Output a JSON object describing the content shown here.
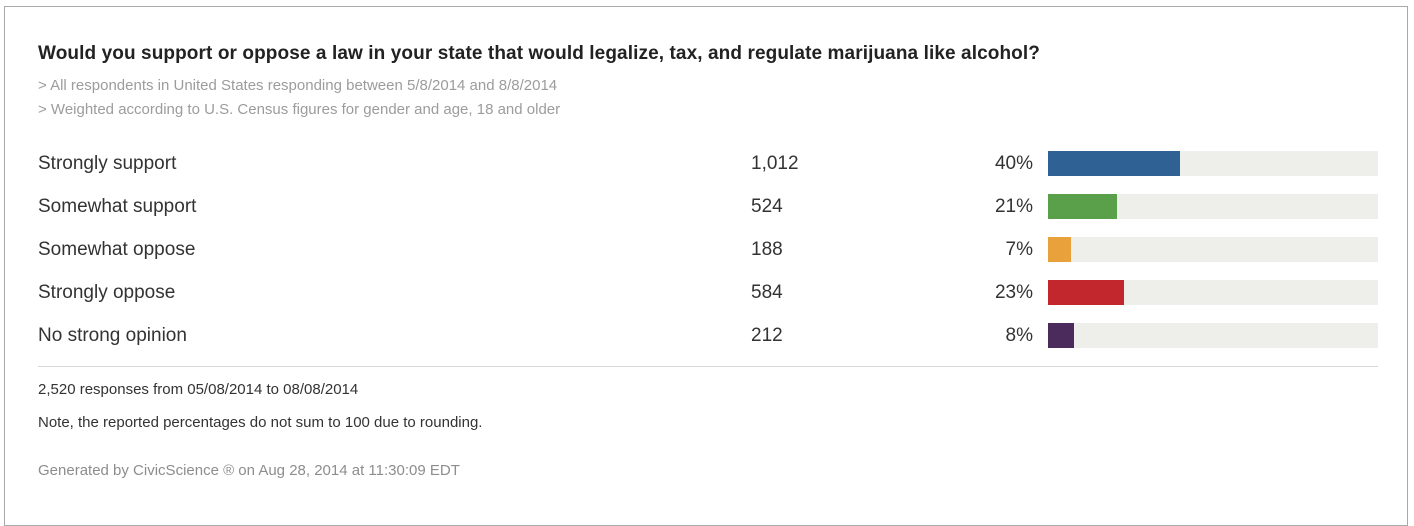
{
  "title": "Would you support or oppose a law in your state that would legalize, tax, and regulate marijuana like alcohol?",
  "subtitles": [
    "> All respondents in United States responding between 5/8/2014 and 8/8/2014",
    "> Weighted according to U.S. Census figures for gender and age, 18 and older"
  ],
  "chart_data": {
    "type": "bar",
    "orientation": "horizontal",
    "title": "Would you support or oppose a law in your state that would legalize, tax, and regulate marijuana like alcohol?",
    "categories": [
      "Strongly support",
      "Somewhat support",
      "Somewhat oppose",
      "Strongly oppose",
      "No strong opinion"
    ],
    "counts": [
      "1,012",
      "524",
      "188",
      "584",
      "212"
    ],
    "values": [
      40,
      21,
      7,
      23,
      8
    ],
    "value_labels": [
      "40%",
      "21%",
      "7%",
      "23%",
      "8%"
    ],
    "colors": [
      "#2f6195",
      "#5aa04a",
      "#e9a23b",
      "#c1272d",
      "#4b2a5c"
    ],
    "track_color": "#eeeeea",
    "xlim": [
      0,
      100
    ],
    "grid": false,
    "legend": "none"
  },
  "footer": {
    "responses": "2,520 responses from 05/08/2014 to 08/08/2014",
    "note": "Note, the reported percentages do not sum to 100 due to rounding.",
    "generated": "Generated by CivicScience ® on Aug 28, 2014 at 11:30:09 EDT"
  }
}
